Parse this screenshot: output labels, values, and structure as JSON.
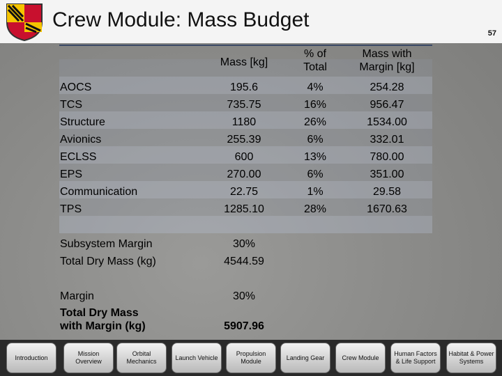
{
  "header": {
    "title": "Crew Module: Mass Budget",
    "page_number": "57"
  },
  "table": {
    "columns": [
      "Mass [kg]",
      "% of Total",
      "Mass with Margin [kg]"
    ],
    "rows": [
      [
        "AOCS",
        "195.6",
        "4%",
        "254.28"
      ],
      [
        "TCS",
        "735.75",
        "16%",
        "956.47"
      ],
      [
        "Structure",
        "1180",
        "26%",
        "1534.00"
      ],
      [
        "Avionics",
        "255.39",
        "6%",
        "332.01"
      ],
      [
        "ECLSS",
        "600",
        "13%",
        "780.00"
      ],
      [
        "EPS",
        "270.00",
        "6%",
        "351.00"
      ],
      [
        "Communication",
        "22.75",
        "1%",
        "29.58"
      ],
      [
        "TPS",
        "1285.10",
        "28%",
        "1670.63"
      ]
    ]
  },
  "summary": {
    "rows": [
      [
        "Subsystem Margin",
        "30%"
      ],
      [
        "Total Dry Mass (kg)",
        "4544.59"
      ]
    ]
  },
  "margin_block": {
    "rows": [
      [
        "Margin",
        "30%"
      ],
      [
        "Total Dry Mass with Margin (kg)",
        "5907.96"
      ]
    ]
  },
  "nav": [
    "Introduction",
    "Mission Overview",
    "Orbital Mechanics",
    "Launch Vehicle",
    "Propulsion Module",
    "Landing Gear",
    "Crew Module",
    "Human Factors & Life Support",
    "Habitat & Power Systems"
  ]
}
